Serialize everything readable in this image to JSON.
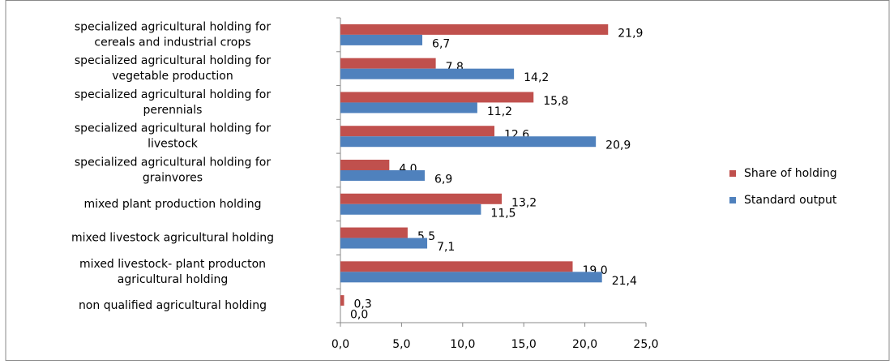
{
  "chart_data": {
    "type": "hbar",
    "categories": [
      [
        "specialized agricultural holding for",
        "cereals and industrial crops"
      ],
      [
        "specialized agricultural holding for",
        "vegetable production"
      ],
      [
        "specialized agricultural holding for",
        "perennials"
      ],
      [
        "specialized agricultural holding for",
        "livestock"
      ],
      [
        "specialized agricultural holding for",
        "grainvores"
      ],
      [
        "mixed plant production holding"
      ],
      [
        "mixed livestock agricultural holding"
      ],
      [
        "mixed livestock- plant producton",
        "agricultural holding"
      ],
      [
        "non qualified agricultural holding"
      ]
    ],
    "series": [
      {
        "name": "Share of holding",
        "color": "#c0504d",
        "values": [
          21.9,
          7.8,
          15.8,
          12.6,
          4.0,
          13.2,
          5.5,
          19.0,
          0.3
        ],
        "value_labels": [
          "21,9",
          "7,8",
          "15,8",
          "12,6",
          "4,0",
          "13,2",
          "5,5",
          "19,0",
          "0,3"
        ]
      },
      {
        "name": "Standard output",
        "color": "#4f81bd",
        "values": [
          6.7,
          14.2,
          11.2,
          20.9,
          6.9,
          11.5,
          7.1,
          21.4,
          0.0
        ],
        "value_labels": [
          "6,7",
          "14,2",
          "11,2",
          "20,9",
          "6,9",
          "11,5",
          "7,1",
          "21,4",
          "0,0"
        ]
      }
    ],
    "xlim": [
      0,
      25
    ],
    "xticks": [
      {
        "value": 0,
        "label": "0,0"
      },
      {
        "value": 5,
        "label": "5,0"
      },
      {
        "value": 10,
        "label": "10,0"
      },
      {
        "value": 15,
        "label": "15,0"
      },
      {
        "value": 20,
        "label": "20,0"
      },
      {
        "value": 25,
        "label": "25,0"
      }
    ],
    "legend": "right"
  }
}
